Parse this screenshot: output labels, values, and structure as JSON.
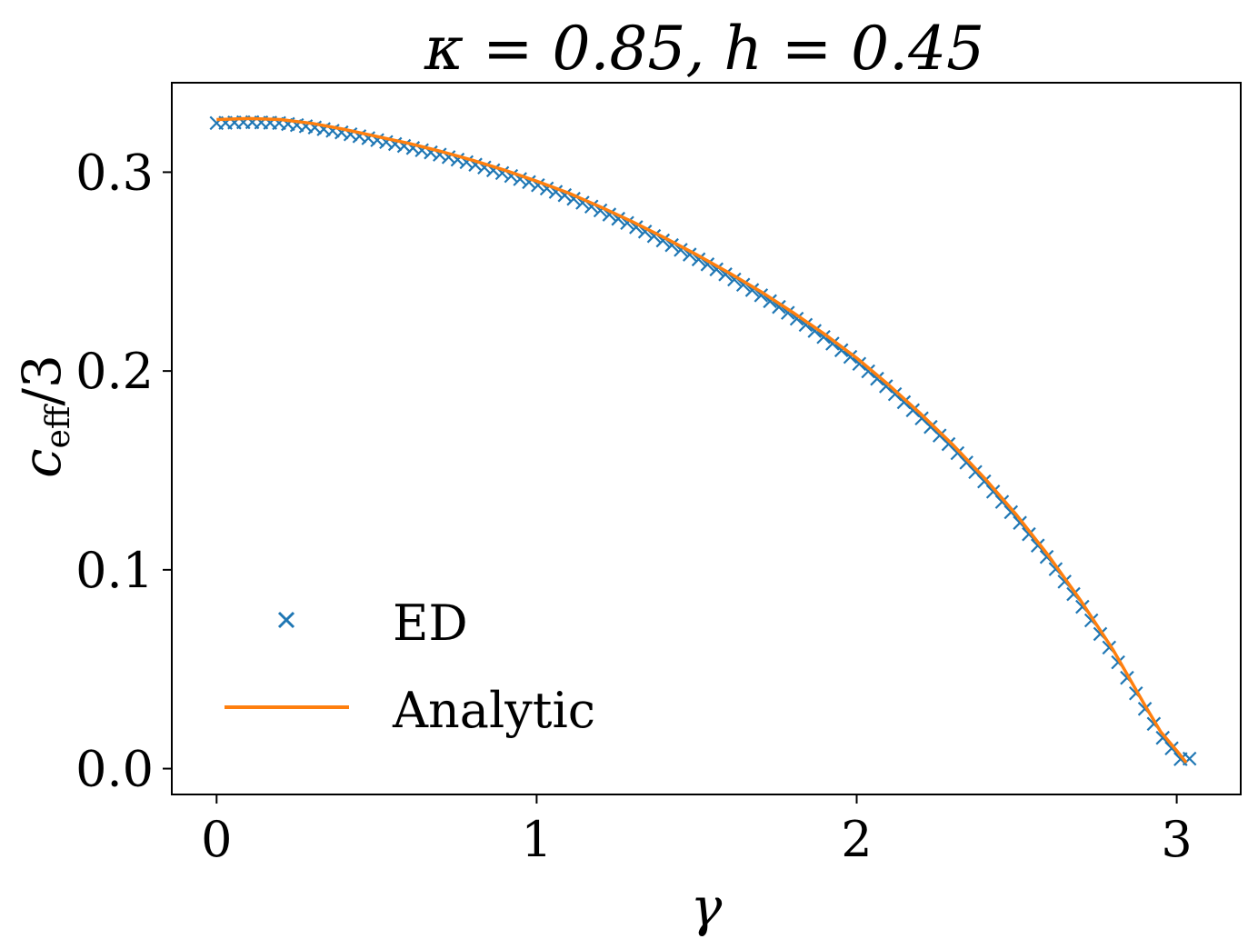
{
  "chart_data": {
    "type": "line",
    "title": "κ = 0.85,  h = 0.45",
    "xlabel": "γ",
    "ylabel_main": "c",
    "ylabel_sub": "eff",
    "ylabel_tail": "/3",
    "xlim": [
      -0.14,
      3.2
    ],
    "ylim": [
      -0.013,
      0.345
    ],
    "x_ticks": [
      {
        "value": 0,
        "label": "0"
      },
      {
        "value": 1,
        "label": "1"
      },
      {
        "value": 2,
        "label": "2"
      },
      {
        "value": 3,
        "label": "3"
      }
    ],
    "y_ticks": [
      {
        "value": 0.0,
        "label": "0.0"
      },
      {
        "value": 0.1,
        "label": "0.1"
      },
      {
        "value": 0.2,
        "label": "0.2"
      },
      {
        "value": 0.3,
        "label": "0.3"
      }
    ],
    "legend": {
      "placement": "lower-left",
      "entries": [
        {
          "label": "ED",
          "marker": "x",
          "color": "#1f77b4"
        },
        {
          "label": "Analytic",
          "marker": "line",
          "color": "#ff7f0e"
        }
      ]
    },
    "series": [
      {
        "name": "ED",
        "kind": "scatter",
        "marker": "x",
        "color": "#1f77b4",
        "x_start": 0.0,
        "x_end": 3.04,
        "count": 110,
        "peak_y": 0.3265
      },
      {
        "name": "Analytic",
        "kind": "line",
        "color": "#ff7f0e",
        "points": [
          [
            0.0,
            0.3265
          ],
          [
            0.1,
            0.327
          ],
          [
            0.2,
            0.3265
          ],
          [
            0.3,
            0.3245
          ],
          [
            0.4,
            0.3215
          ],
          [
            0.5,
            0.318
          ],
          [
            0.6,
            0.3145
          ],
          [
            0.7,
            0.3105
          ],
          [
            0.8,
            0.306
          ],
          [
            0.9,
            0.301
          ],
          [
            1.0,
            0.2955
          ],
          [
            1.1,
            0.2895
          ],
          [
            1.2,
            0.2825
          ],
          [
            1.3,
            0.275
          ],
          [
            1.4,
            0.267
          ],
          [
            1.5,
            0.2585
          ],
          [
            1.6,
            0.2495
          ],
          [
            1.7,
            0.24
          ],
          [
            1.8,
            0.2295
          ],
          [
            1.9,
            0.2185
          ],
          [
            2.0,
            0.2065
          ],
          [
            2.1,
            0.193
          ],
          [
            2.2,
            0.1785
          ],
          [
            2.3,
            0.163
          ],
          [
            2.4,
            0.146
          ],
          [
            2.5,
            0.1275
          ],
          [
            2.6,
            0.107
          ],
          [
            2.7,
            0.0845
          ],
          [
            2.8,
            0.06
          ],
          [
            2.9,
            0.032
          ],
          [
            2.95,
            0.0185
          ],
          [
            3.0,
            0.009
          ],
          [
            3.03,
            0.003
          ]
        ]
      }
    ]
  }
}
